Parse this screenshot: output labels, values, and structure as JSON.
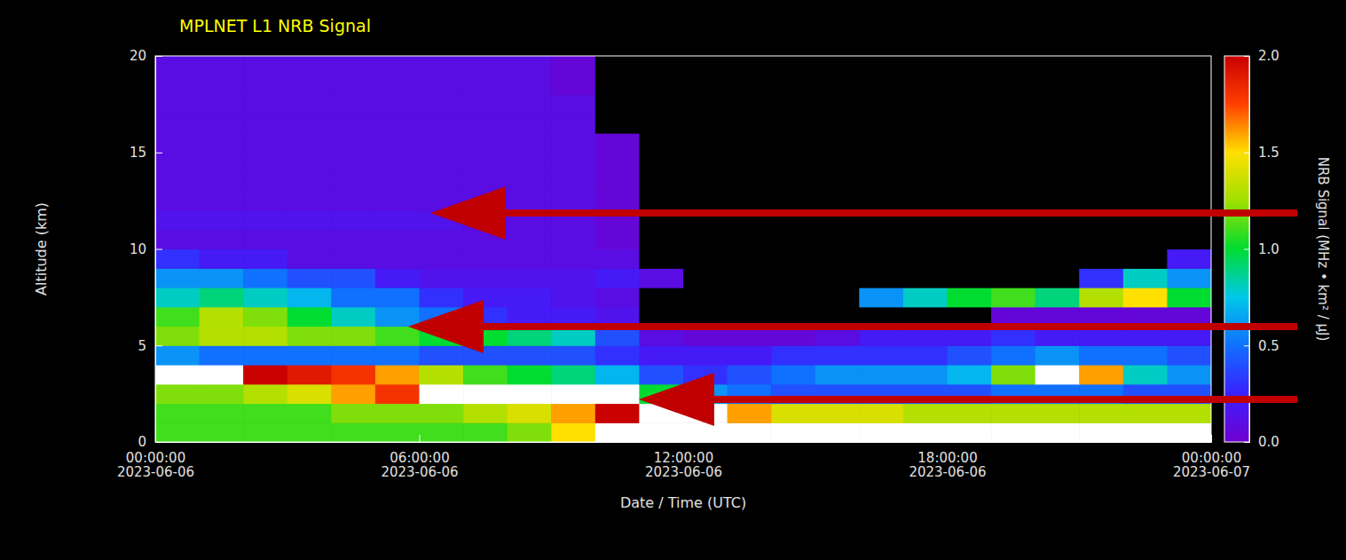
{
  "chart_data": {
    "type": "heatmap",
    "title": "MPLNET L1 NRB Signal",
    "x_label": "Date / Time (UTC)",
    "y_label": "Altitude (km)",
    "colorbar_label": "NRB Signal (MHz • km² / μJ)",
    "colorbar_range": [
      0,
      2
    ],
    "colorbar_ticks": [
      {
        "value": 0,
        "label": "0.0"
      },
      {
        "value": 0.5,
        "label": "0.5"
      },
      {
        "value": 1,
        "label": "1.0"
      },
      {
        "value": 1.5,
        "label": "1.5"
      },
      {
        "value": 2,
        "label": "2.0"
      }
    ],
    "xlim": [
      "2023-06-06 00:00:00",
      "2023-06-07 00:00:00"
    ],
    "xticks": [
      {
        "value": "2023-06-06 00:00:00",
        "label": "00:00:00\n2023-06-06"
      },
      {
        "value": "2023-06-06 06:00:00",
        "label": "06:00:00\n2023-06-06"
      },
      {
        "value": "2023-06-06 12:00:00",
        "label": "12:00:00\n2023-06-06"
      },
      {
        "value": "2023-06-06 18:00:00",
        "label": "18:00:00\n2023-06-06"
      },
      {
        "value": "2023-06-07 00:00:00",
        "label": "00:00:00\n2023-06-07"
      }
    ],
    "ylim": [
      0,
      20
    ],
    "yticks": [
      0,
      5,
      10,
      15,
      20
    ],
    "x": [
      "2023-06-06 00:00:00",
      "2023-06-06 01:00:00",
      "2023-06-06 02:00:00",
      "2023-06-06 03:00:00",
      "2023-06-06 04:00:00",
      "2023-06-06 05:00:00",
      "2023-06-06 06:00:00",
      "2023-06-06 07:00:00",
      "2023-06-06 08:00:00",
      "2023-06-06 09:00:00",
      "2023-06-06 10:00:00",
      "2023-06-06 11:00:00",
      "2023-06-06 12:00:00",
      "2023-06-06 13:00:00",
      "2023-06-06 14:00:00",
      "2023-06-06 15:00:00",
      "2023-06-06 16:00:00",
      "2023-06-06 17:00:00",
      "2023-06-06 18:00:00",
      "2023-06-06 19:00:00",
      "2023-06-06 20:00:00",
      "2023-06-06 21:00:00",
      "2023-06-06 22:00:00",
      "2023-06-06 23:00:00"
    ],
    "y": [
      0,
      1,
      2,
      3,
      4,
      5,
      6,
      7,
      8,
      9,
      10,
      11,
      12,
      13,
      14,
      15,
      16,
      17,
      18,
      19
    ],
    "cells": [
      [
        1.1,
        1.1,
        1.1,
        1.1,
        1.1,
        1.1,
        1.1,
        1.1,
        1.2,
        1.5,
        2.1,
        2.2,
        2.2,
        2.2,
        2.1,
        2.1,
        2.1,
        2.1,
        2.1,
        2.1,
        2.1,
        2.1,
        2.1,
        2.1
      ],
      [
        1.1,
        1.1,
        1.1,
        1.1,
        1.2,
        1.2,
        1.2,
        1.3,
        1.4,
        1.6,
        2.0,
        2.2,
        2.2,
        1.6,
        1.4,
        1.4,
        1.4,
        1.3,
        1.3,
        1.3,
        1.3,
        1.3,
        1.3,
        1.3
      ],
      [
        1.2,
        1.2,
        1.3,
        1.4,
        1.6,
        1.8,
        2.1,
        2.2,
        2.2,
        2.2,
        2.1,
        1.0,
        0.6,
        0.5,
        0.4,
        0.4,
        0.4,
        0.4,
        0.4,
        0.5,
        0.5,
        0.5,
        0.4,
        0.4
      ],
      [
        2.1,
        2.1,
        2.0,
        1.9,
        1.8,
        1.6,
        1.3,
        1.1,
        1.0,
        0.9,
        0.7,
        0.4,
        0.3,
        0.4,
        0.5,
        0.6,
        0.6,
        0.6,
        0.7,
        1.2,
        2.1,
        1.6,
        0.8,
        0.6
      ],
      [
        0.6,
        0.5,
        0.5,
        0.5,
        0.5,
        0.5,
        0.4,
        0.4,
        0.4,
        0.4,
        0.3,
        0.2,
        0.2,
        0.2,
        0.3,
        0.3,
        0.3,
        0.3,
        0.4,
        0.5,
        0.6,
        0.5,
        0.5,
        0.4
      ],
      [
        1.2,
        1.3,
        1.3,
        1.2,
        1.2,
        1.1,
        1.0,
        1.0,
        0.9,
        0.8,
        0.4,
        0.1,
        0.05,
        0.05,
        0.05,
        0.1,
        0.2,
        0.2,
        0.2,
        0.3,
        0.2,
        0.2,
        0.2,
        0.2
      ],
      [
        1.1,
        1.3,
        1.2,
        1.0,
        0.8,
        0.6,
        0.5,
        0.3,
        0.2,
        0.2,
        0.15,
        -0.05,
        -0.05,
        -0.05,
        -0.05,
        -0.05,
        -0.05,
        -0.05,
        -0.05,
        0.05,
        0.05,
        0.05,
        0.05,
        0.05
      ],
      [
        0.8,
        0.9,
        0.8,
        0.7,
        0.5,
        0.5,
        0.3,
        0.2,
        0.2,
        0.15,
        0.1,
        -0.05,
        -0.05,
        -0.05,
        -0.05,
        -0.05,
        0.6,
        0.8,
        1.0,
        1.1,
        0.9,
        1.3,
        1.5,
        1.0
      ],
      [
        0.6,
        0.6,
        0.5,
        0.4,
        0.4,
        0.2,
        0.15,
        0.15,
        0.15,
        0.15,
        0.2,
        0.1,
        -0.05,
        -0.05,
        -0.05,
        -0.05,
        -0.05,
        -0.05,
        -0.05,
        -0.05,
        -0.05,
        0.3,
        0.8,
        0.6
      ],
      [
        0.3,
        0.2,
        0.2,
        0.1,
        0.1,
        0.1,
        0.1,
        0.1,
        0.1,
        0.1,
        0.1,
        -0.05,
        -0.05,
        -0.05,
        -0.05,
        -0.05,
        -0.05,
        -0.05,
        -0.05,
        -0.05,
        -0.05,
        -0.05,
        -0.05,
        0.2
      ],
      [
        0.1,
        0.1,
        0.1,
        0.1,
        0.1,
        0.1,
        0.1,
        0.1,
        0.1,
        0.1,
        0.05,
        -0.05,
        -0.05,
        -0.05,
        -0.05,
        -0.05,
        -0.05,
        -0.05,
        -0.05,
        -0.05,
        -0.05,
        -0.05,
        -0.05,
        -0.05
      ],
      [
        0.15,
        0.15,
        0.15,
        0.15,
        0.15,
        0.15,
        0.15,
        0.1,
        0.1,
        0.1,
        0.05,
        -0.05,
        -0.05,
        -0.05,
        -0.05,
        -0.05,
        -0.05,
        -0.05,
        -0.05,
        -0.05,
        -0.05,
        -0.05,
        -0.05,
        -0.05
      ],
      [
        0.1,
        0.1,
        0.1,
        0.1,
        0.1,
        0.1,
        0.1,
        0.1,
        0.1,
        0.1,
        0.05,
        -0.05,
        -0.05,
        -0.05,
        -0.05,
        -0.05,
        -0.05,
        -0.05,
        -0.05,
        -0.05,
        -0.05,
        -0.05,
        -0.05,
        -0.05
      ],
      [
        0.1,
        0.1,
        0.1,
        0.1,
        0.1,
        0.1,
        0.1,
        0.1,
        0.1,
        0.1,
        0.05,
        -0.05,
        -0.05,
        -0.05,
        -0.05,
        -0.05,
        -0.05,
        -0.05,
        -0.05,
        -0.05,
        -0.05,
        -0.05,
        -0.05,
        -0.05
      ],
      [
        0.1,
        0.1,
        0.1,
        0.1,
        0.1,
        0.1,
        0.1,
        0.1,
        0.1,
        0.1,
        0.05,
        -0.05,
        -0.05,
        -0.05,
        -0.05,
        -0.05,
        -0.05,
        -0.05,
        -0.05,
        -0.05,
        -0.05,
        -0.05,
        -0.05,
        -0.05
      ],
      [
        0.1,
        0.1,
        0.1,
        0.1,
        0.1,
        0.1,
        0.1,
        0.1,
        0.1,
        0.1,
        0.05,
        -0.05,
        -0.05,
        -0.05,
        -0.05,
        -0.05,
        -0.05,
        -0.05,
        -0.05,
        -0.05,
        -0.05,
        -0.05,
        -0.05,
        -0.05
      ],
      [
        0.1,
        0.1,
        0.1,
        0.1,
        0.1,
        0.1,
        0.1,
        0.1,
        0.1,
        0.1,
        -0.05,
        -0.05,
        -0.05,
        -0.05,
        -0.05,
        -0.05,
        -0.05,
        -0.05,
        -0.05,
        -0.05,
        -0.05,
        -0.05,
        -0.05,
        -0.05
      ],
      [
        0.1,
        0.1,
        0.1,
        0.1,
        0.1,
        0.1,
        0.1,
        0.1,
        0.1,
        0.1,
        -0.05,
        -0.05,
        -0.05,
        -0.05,
        -0.05,
        -0.05,
        -0.05,
        -0.05,
        -0.05,
        -0.05,
        -0.05,
        -0.05,
        -0.05,
        -0.05
      ],
      [
        0.1,
        0.1,
        0.1,
        0.1,
        0.1,
        0.1,
        0.1,
        0.1,
        0.1,
        0.05,
        -0.05,
        -0.05,
        -0.05,
        -0.05,
        -0.05,
        -0.05,
        -0.05,
        -0.05,
        -0.05,
        -0.05,
        -0.05,
        -0.05,
        -0.05,
        -0.05
      ],
      [
        0.1,
        0.1,
        0.1,
        0.1,
        0.1,
        0.1,
        0.1,
        0.1,
        0.1,
        0.05,
        -0.05,
        -0.05,
        -0.05,
        -0.05,
        -0.05,
        -0.05,
        -0.05,
        -0.05,
        -0.05,
        -0.05,
        -0.05,
        -0.05,
        -0.05,
        -0.05
      ]
    ]
  }
}
